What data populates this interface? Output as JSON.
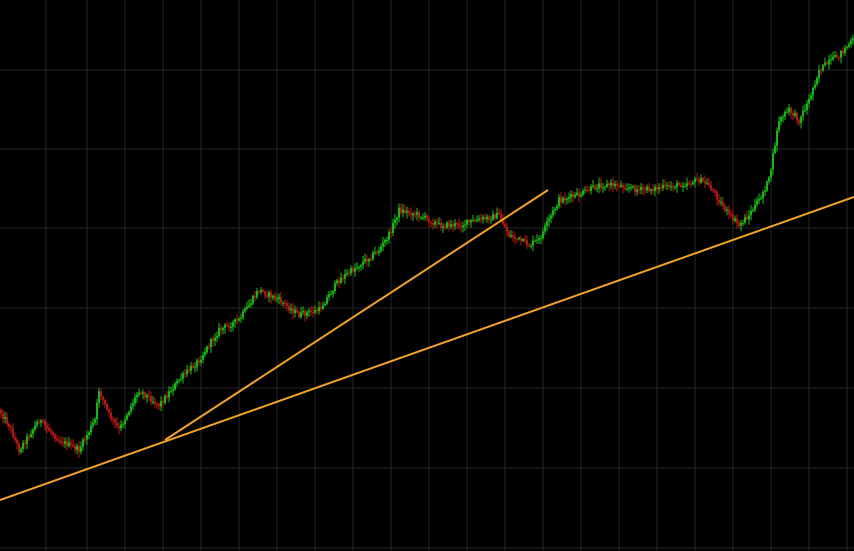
{
  "colors": {
    "background": "#000000",
    "grid": "#262626",
    "up": "#22e01c",
    "down": "#d8211c",
    "wick_up": "#1ebf18",
    "wick_down": "#b81a16",
    "trendline": "#f0a22a"
  },
  "chart_data": {
    "type": "candlestick",
    "grid": true,
    "legend": "none",
    "x_range": [
      0,
      427
    ],
    "ylim": [
      0,
      551
    ],
    "keypoints": [
      [
        0,
        410
      ],
      [
        5,
        425
      ],
      [
        10,
        450
      ],
      [
        20,
        420
      ],
      [
        30,
        440
      ],
      [
        40,
        450
      ],
      [
        48,
        420
      ],
      [
        50,
        390
      ],
      [
        55,
        415
      ],
      [
        60,
        430
      ],
      [
        70,
        390
      ],
      [
        80,
        405
      ],
      [
        90,
        380
      ],
      [
        100,
        360
      ],
      [
        110,
        330
      ],
      [
        120,
        320
      ],
      [
        130,
        290
      ],
      [
        140,
        300
      ],
      [
        150,
        315
      ],
      [
        160,
        310
      ],
      [
        170,
        280
      ],
      [
        180,
        265
      ],
      [
        190,
        250
      ],
      [
        195,
        235
      ],
      [
        200,
        210
      ],
      [
        210,
        215
      ],
      [
        220,
        225
      ],
      [
        230,
        225
      ],
      [
        240,
        220
      ],
      [
        250,
        215
      ],
      [
        255,
        235
      ],
      [
        265,
        245
      ],
      [
        270,
        240
      ],
      [
        275,
        220
      ],
      [
        280,
        200
      ],
      [
        290,
        195
      ],
      [
        300,
        185
      ],
      [
        310,
        185
      ],
      [
        320,
        190
      ],
      [
        330,
        188
      ],
      [
        340,
        185
      ],
      [
        350,
        180
      ],
      [
        355,
        185
      ],
      [
        360,
        200
      ],
      [
        365,
        215
      ],
      [
        370,
        225
      ],
      [
        375,
        215
      ],
      [
        380,
        200
      ],
      [
        385,
        180
      ],
      [
        390,
        120
      ],
      [
        395,
        110
      ],
      [
        400,
        120
      ],
      [
        405,
        100
      ],
      [
        410,
        70
      ],
      [
        420,
        55
      ],
      [
        427,
        40
      ]
    ],
    "trendlines": [
      {
        "x1": 0,
        "y1": 500,
        "x2": 854,
        "y2": 197
      },
      {
        "x1": 165,
        "y1": 440,
        "x2": 548,
        "y2": 190
      }
    ],
    "grid_vertical": [
      46,
      87,
      125,
      163,
      201,
      239,
      277,
      315,
      353,
      391,
      429,
      467,
      505,
      543,
      581,
      619,
      657,
      695,
      733,
      771,
      809,
      847
    ],
    "grid_horizontal": [
      70,
      149,
      228,
      308,
      388,
      468,
      548
    ]
  }
}
